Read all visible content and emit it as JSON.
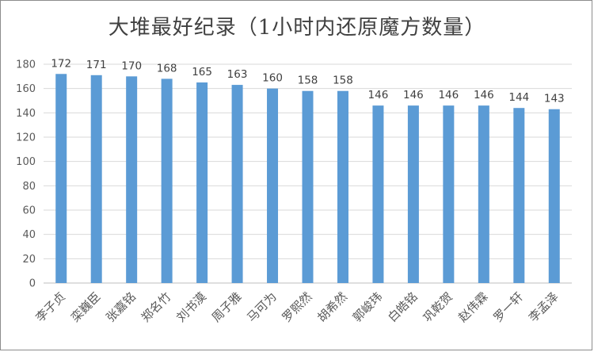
{
  "chart_data": {
    "type": "bar",
    "title": "大堆最好纪录（1小时内还原魔方数量）",
    "categories": [
      "李子贞",
      "栾巍臣",
      "张嘉铭",
      "郑名竹",
      "刘书漠",
      "周子雅",
      "马可为",
      "罗熙然",
      "胡希然",
      "郭峻玮",
      "白皓铭",
      "巩乾贺",
      "赵伟霖",
      "罗一轩",
      "李孟泽"
    ],
    "values": [
      172,
      171,
      170,
      168,
      165,
      163,
      160,
      158,
      158,
      146,
      146,
      146,
      146,
      144,
      143
    ],
    "ylim": [
      0,
      180
    ],
    "yticks": [
      "0",
      "20",
      "40",
      "60",
      "80",
      "100",
      "120",
      "140",
      "160",
      "180"
    ],
    "grid": true,
    "legend": "none",
    "bar_color": "#5b9bd5",
    "grid_color": "#d9d9d9"
  }
}
